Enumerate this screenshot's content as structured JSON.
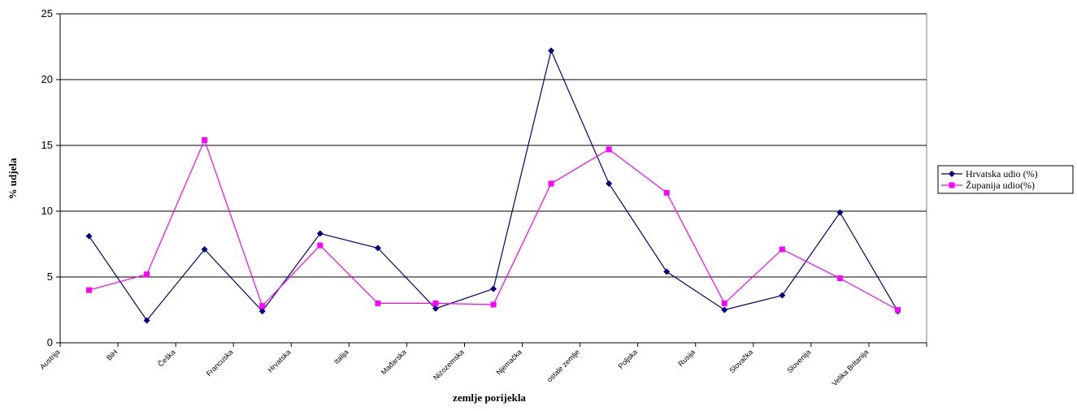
{
  "chart_data": {
    "type": "line",
    "title": "",
    "xlabel": "zemlje porijekla",
    "ylabel": "% udjela",
    "ylim": [
      0,
      25
    ],
    "yticks": [
      0,
      5,
      10,
      15,
      20,
      25
    ],
    "grid": "horizontal",
    "legend_position": "right",
    "categories": [
      "Austrija",
      "BiH",
      "Češka",
      "Francuska",
      "Hrvatska",
      "Italija",
      "Mađarska",
      "Nizozemska",
      "Njemačka",
      "ostale zemlje",
      "Poljska",
      "Rusija",
      "Slovačka",
      "Slovenija",
      "Velika Britanija"
    ],
    "series": [
      {
        "name": "Hrvatska udio (%)",
        "color": "#000080",
        "marker": "diamond",
        "values": [
          8.1,
          1.7,
          7.1,
          2.4,
          8.3,
          7.2,
          2.6,
          4.1,
          22.2,
          12.1,
          5.4,
          2.5,
          3.6,
          9.9,
          2.4
        ]
      },
      {
        "name": "Županija udio(%)",
        "color": "#FF00FF",
        "marker": "square",
        "values": [
          4.0,
          5.2,
          15.4,
          2.8,
          7.4,
          3.0,
          3.0,
          2.9,
          12.1,
          14.7,
          11.4,
          3.0,
          7.1,
          4.9,
          2.5
        ]
      }
    ]
  }
}
